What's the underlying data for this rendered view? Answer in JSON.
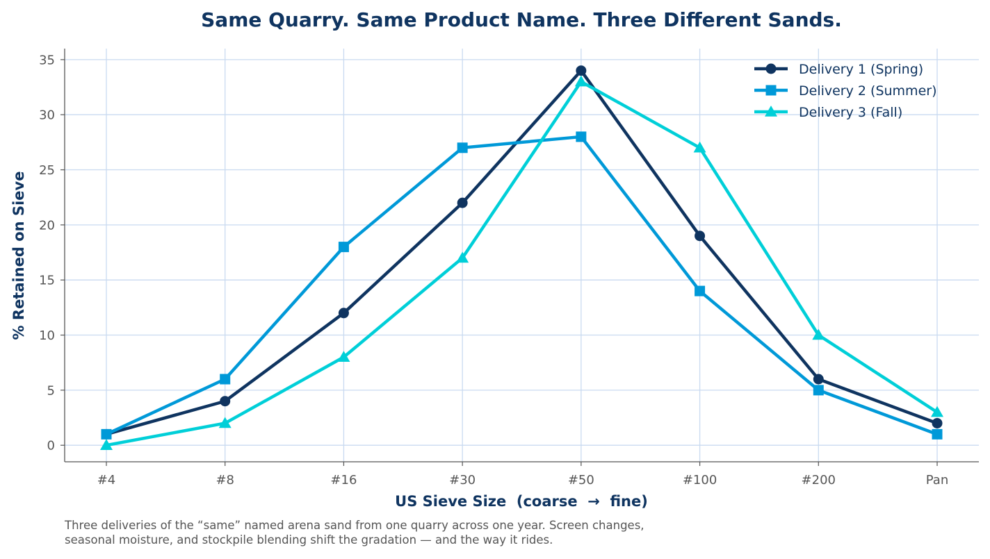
{
  "chart_data": {
    "type": "line",
    "title": "Same Quarry. Same Product Name. Three Different Sands.",
    "xlabel": "US Sieve Size  (coarse  →  fine)",
    "ylabel": "% Retained on Sieve",
    "categories": [
      "#4",
      "#8",
      "#16",
      "#30",
      "#50",
      "#100",
      "#200",
      "Pan"
    ],
    "ylim": [
      -1.5,
      36
    ],
    "yticks": [
      0,
      5,
      10,
      15,
      20,
      25,
      30,
      35
    ],
    "grid": true,
    "legend_position": "top-right",
    "series": [
      {
        "name": "Delivery 1  (Spring)",
        "color": "#0f3460",
        "marker": "circle",
        "values": [
          1,
          4,
          12,
          22,
          34,
          19,
          6,
          2
        ]
      },
      {
        "name": "Delivery 2  (Summer)",
        "color": "#0099d8",
        "marker": "square",
        "values": [
          1,
          6,
          18,
          27,
          28,
          14,
          5,
          1
        ]
      },
      {
        "name": "Delivery 3  (Fall)",
        "color": "#00cfd8",
        "marker": "triangle",
        "values": [
          0,
          2,
          8,
          17,
          33,
          27,
          10,
          3
        ]
      }
    ],
    "caption_lines": [
      "Three deliveries of the “same” named arena sand from one quarry across one year. Screen changes,",
      "seasonal moisture, and stockpile blending shift the gradation — and the way it rides."
    ],
    "colors": {
      "title": "#0f3460",
      "grid": "#c9daf0",
      "axis": "#555555",
      "caption": "#555555"
    }
  }
}
